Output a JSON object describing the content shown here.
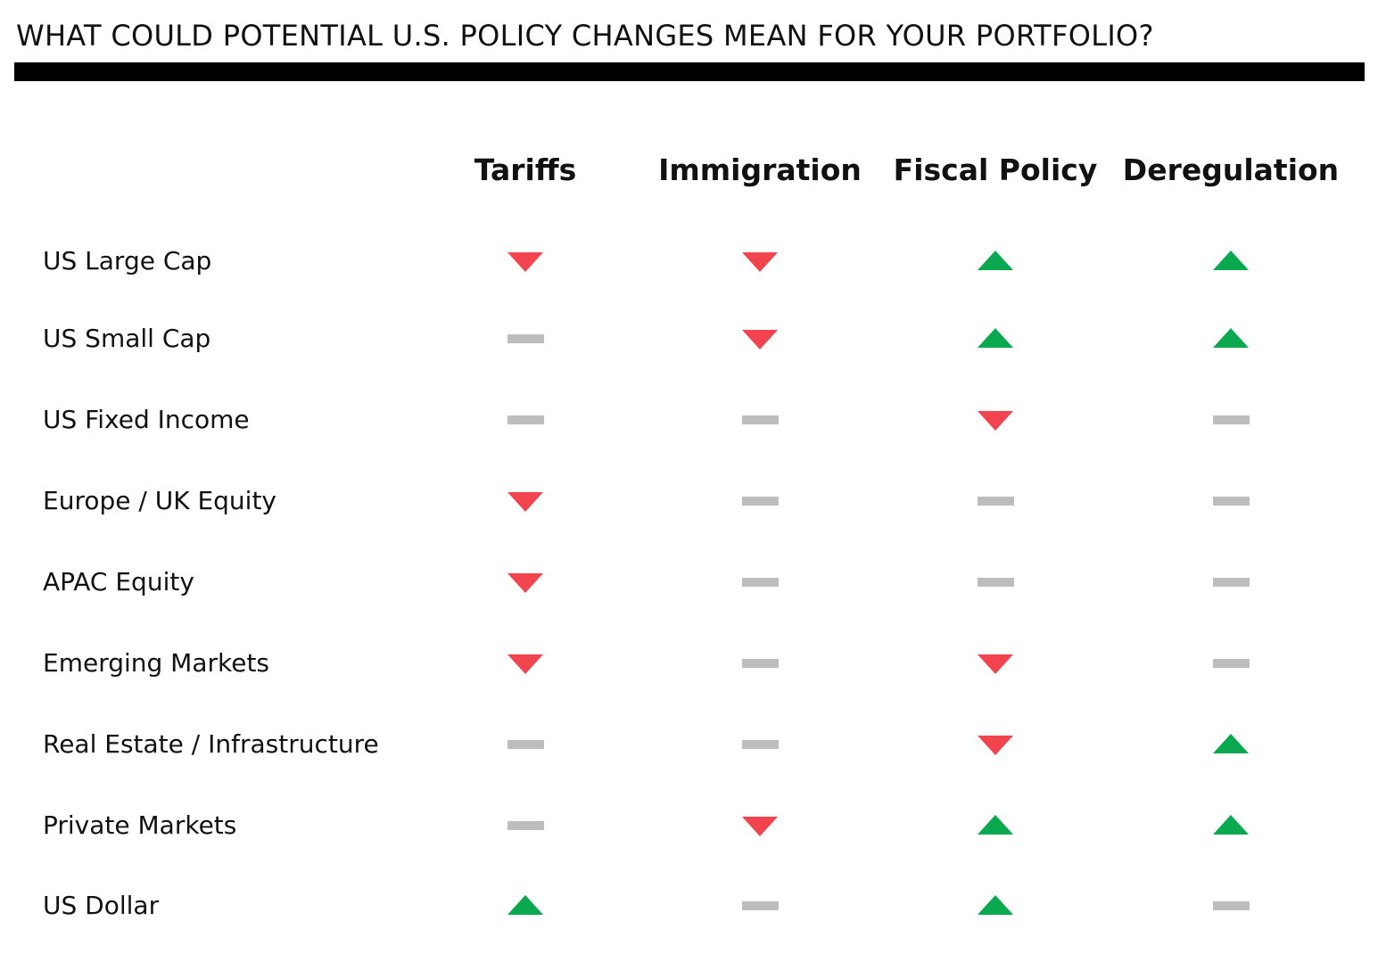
{
  "title": "WHAT COULD POTENTIAL U.S. POLICY CHANGES MEAN FOR YOUR PORTFOLIO?",
  "colors": {
    "up": "#0aa84f",
    "down": "#f2444e",
    "neutral": "#bdbdbd",
    "rule": "#000000"
  },
  "chart_data": {
    "type": "table",
    "legend_values": {
      "up": 1,
      "neutral": 0,
      "down": -1
    },
    "columns": [
      "Tariffs",
      "Immigration",
      "Fiscal Policy",
      "Deregulation"
    ],
    "rows": [
      {
        "label": "US Large Cap",
        "values": [
          -1,
          -1,
          1,
          1
        ]
      },
      {
        "label": "US Small Cap",
        "values": [
          0,
          -1,
          1,
          1
        ]
      },
      {
        "label": "US Fixed Income",
        "values": [
          0,
          0,
          -1,
          0
        ]
      },
      {
        "label": "Europe / UK Equity",
        "values": [
          -1,
          0,
          0,
          0
        ]
      },
      {
        "label": "APAC Equity",
        "values": [
          -1,
          0,
          0,
          0
        ]
      },
      {
        "label": "Emerging Markets",
        "values": [
          -1,
          0,
          -1,
          0
        ]
      },
      {
        "label": "Real Estate / Infrastructure",
        "values": [
          0,
          0,
          -1,
          1
        ]
      },
      {
        "label": "Private Markets",
        "values": [
          0,
          -1,
          1,
          1
        ]
      },
      {
        "label": "US Dollar",
        "values": [
          1,
          0,
          1,
          0
        ]
      }
    ]
  }
}
